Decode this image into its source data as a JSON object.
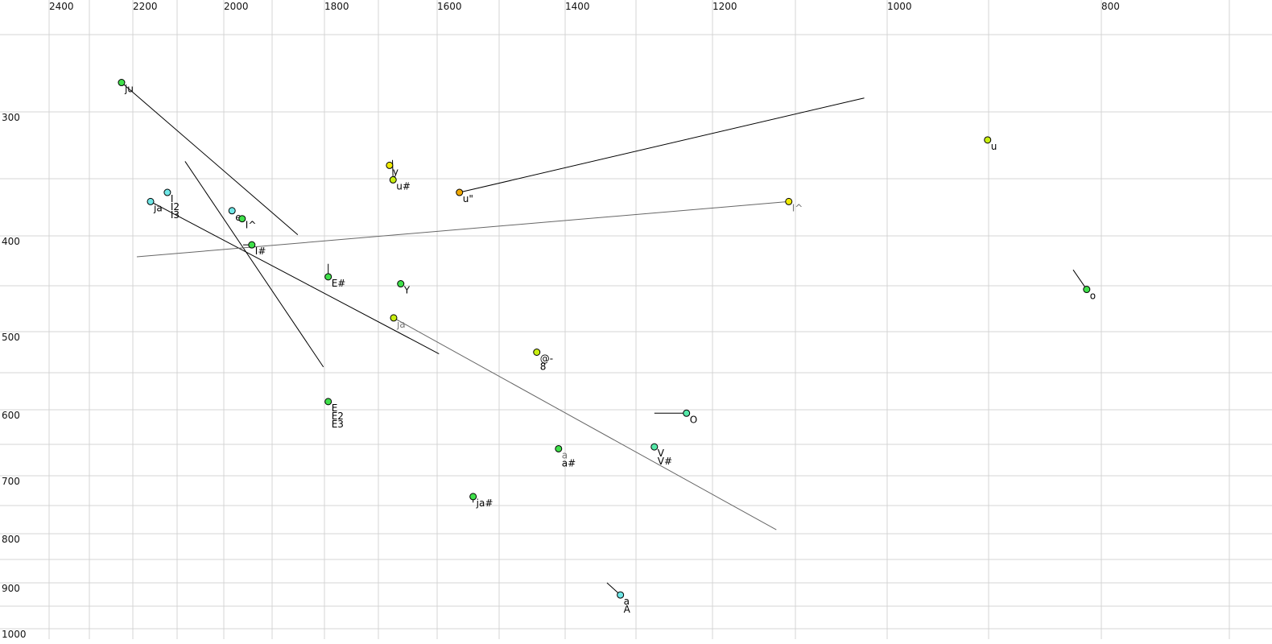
{
  "chart_data": {
    "type": "scatter",
    "title": "",
    "xlabel": "",
    "ylabel": "",
    "x_axis": {
      "reversed": true,
      "scale": "nonlinear (log-like)",
      "range": [
        2500,
        700
      ],
      "tick_labels": [
        2400,
        2200,
        2000,
        1800,
        1600,
        1400,
        1200,
        1000,
        800
      ],
      "position": "top"
    },
    "y_axis": {
      "reversed": true,
      "scale": "nonlinear (log-like)",
      "range": [
        250,
        1000
      ],
      "tick_labels": [
        300,
        400,
        500,
        600,
        700,
        800,
        900,
        1000
      ],
      "position": "left"
    },
    "grid": true,
    "colors": {
      "green": "#3fe04a",
      "cyan": "#6fe6e6",
      "yellow": "#f0ea00",
      "orange": "#f0a800",
      "yellowgreen": "#c8ee10",
      "mint": "#55e8a8",
      "grid": "#d4d4d4",
      "line": "#000000",
      "gray_line": "#666666"
    },
    "points": [
      {
        "x": 2226,
        "y": 281,
        "color": "green",
        "labels": [
          "ju"
        ],
        "trail": [
          1851,
          399
        ]
      },
      {
        "x": 2122,
        "y": 362,
        "color": "cyan",
        "labels": [
          "I",
          "I2",
          "I3"
        ]
      },
      {
        "x": 2160,
        "y": 370,
        "color": "cyan",
        "labels": [
          "ja"
        ],
        "trail": [
          1597,
          527
        ]
      },
      {
        "x": 1983,
        "y": 378,
        "color": "cyan",
        "labels": [
          "e"
        ]
      },
      {
        "x": 1962,
        "y": 385,
        "color": "green",
        "labels": [
          "I^"
        ]
      },
      {
        "x": 1942,
        "y": 409,
        "color": "green",
        "labels": [
          "I#"
        ],
        "trail": [
          1960,
          409
        ]
      },
      {
        "x": 1793,
        "y": 441,
        "color": "green",
        "labels": [
          "E#"
        ],
        "trail": [
          1793,
          428
        ]
      },
      {
        "x": 1662,
        "y": 448,
        "color": "green",
        "labels": [
          "Y"
        ]
      },
      {
        "x": 1681,
        "y": 340,
        "color": "yellow",
        "labels": [
          "y"
        ]
      },
      {
        "x": 1675,
        "y": 351,
        "color": "yellowgreen",
        "labels": [
          "u#"
        ],
        "trail": [
          1676,
          336
        ]
      },
      {
        "x": 1564,
        "y": 362,
        "color": "orange",
        "labels": [
          "u\""
        ],
        "trail": [
          1025,
          291
        ]
      },
      {
        "x": 1108,
        "y": 370,
        "color": "yellow",
        "labels": [
          "I^"
        ],
        "label_color": "gray",
        "trail": [
          2191,
          421
        ],
        "trail_color": "gray"
      },
      {
        "x": 901,
        "y": 321,
        "color": "yellowgreen",
        "labels": [
          "u"
        ]
      },
      {
        "x": 813,
        "y": 454,
        "color": "green",
        "labels": [
          "o"
        ],
        "trail": [
          825,
          434
        ]
      },
      {
        "x": 1674,
        "y": 485,
        "color": "yellowgreen",
        "labels": [
          "ja"
        ],
        "label_color": "gray",
        "trail": [
          1123,
          793
        ],
        "trail_color": "gray"
      },
      {
        "x": 1443,
        "y": 525,
        "color": "yellowgreen",
        "labels": [
          "@-",
          "8"
        ]
      },
      {
        "x": 1793,
        "y": 589,
        "color": "green",
        "labels": [
          "E",
          "E2",
          "E3"
        ]
      },
      {
        "x": 1234,
        "y": 605,
        "color": "mint",
        "labels": [
          "O"
        ],
        "trail": [
          1276,
          605
        ]
      },
      {
        "x": 1276,
        "y": 654,
        "color": "mint",
        "labels": [
          "V",
          "V#"
        ]
      },
      {
        "x": 1410,
        "y": 657,
        "color": "green",
        "labels": [
          "a",
          "a#"
        ],
        "label_colors": [
          "gray",
          "black"
        ]
      },
      {
        "x": 1542,
        "y": 735,
        "color": "green",
        "labels": [
          "ja#"
        ],
        "trail": [
          1542,
          745
        ]
      },
      {
        "x": 1322,
        "y": 926,
        "color": "cyan",
        "labels": [
          "a",
          "A"
        ],
        "trail": [
          1341,
          900
        ]
      }
    ],
    "segments": [
      {
        "from": [
          2083,
          337
        ],
        "to": [
          1802,
          543
        ]
      }
    ]
  }
}
